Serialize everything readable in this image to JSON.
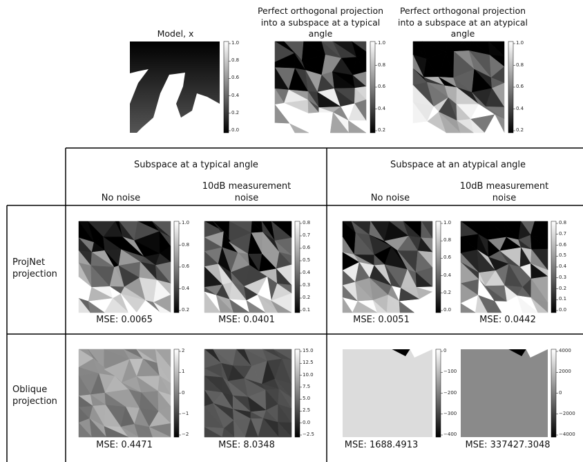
{
  "top": [
    {
      "title": "Model, x",
      "colorbar": [
        "1.0",
        "0.8",
        "0.6",
        "0.4",
        "0.2",
        "0.0"
      ]
    },
    {
      "title": "Perfect orthogonal projection into a subspace at a typical angle",
      "colorbar": [
        "1.0",
        "0.8",
        "0.6",
        "0.4",
        "0.2"
      ]
    },
    {
      "title": "Perfect orthogonal projection into a subspace at an atypical angle",
      "colorbar": [
        "1.0",
        "0.8",
        "0.6",
        "0.4",
        "0.2"
      ]
    }
  ],
  "table": {
    "groups": [
      "Subspace at a typical angle",
      "Subspace at an atypical angle"
    ],
    "columns": [
      "No noise",
      "10dB measurement noise",
      "No noise",
      "10dB measurement noise"
    ],
    "rows": [
      {
        "label": "ProjNet projection",
        "cells": [
          {
            "mse": "MSE: 0.0065",
            "colorbar": [
              "1.0",
              "0.8",
              "0.6",
              "0.4",
              "0.2"
            ]
          },
          {
            "mse": "MSE: 0.0401",
            "colorbar": [
              "0.8",
              "0.7",
              "0.6",
              "0.5",
              "0.4",
              "0.3",
              "0.2",
              "0.1"
            ]
          },
          {
            "mse": "MSE: 0.0051",
            "colorbar": [
              "1.0",
              "0.8",
              "0.6",
              "0.4",
              "0.2",
              "0.0"
            ]
          },
          {
            "mse": "MSE: 0.0442",
            "colorbar": [
              "0.8",
              "0.7",
              "0.6",
              "0.5",
              "0.4",
              "0.3",
              "0.2",
              "0.1",
              "0.0"
            ]
          }
        ]
      },
      {
        "label": "Oblique projection",
        "cells": [
          {
            "mse": "MSE: 0.4471",
            "colorbar": [
              "2",
              "1",
              "0",
              "−1",
              "−2"
            ]
          },
          {
            "mse": "MSE: 8.0348",
            "colorbar": [
              "15.0",
              "12.5",
              "10.0",
              "7.5",
              "5.0",
              "2.5",
              "0.0",
              "−2.5"
            ]
          },
          {
            "mse": "MSE: 1688.4913",
            "colorbar": [
              "0",
              "−100",
              "−200",
              "−300",
              "−400"
            ]
          },
          {
            "mse": "MSE: 337427.3048",
            "colorbar": [
              "4000",
              "2000",
              "0",
              "−2000",
              "−4000"
            ]
          }
        ]
      }
    ]
  }
}
